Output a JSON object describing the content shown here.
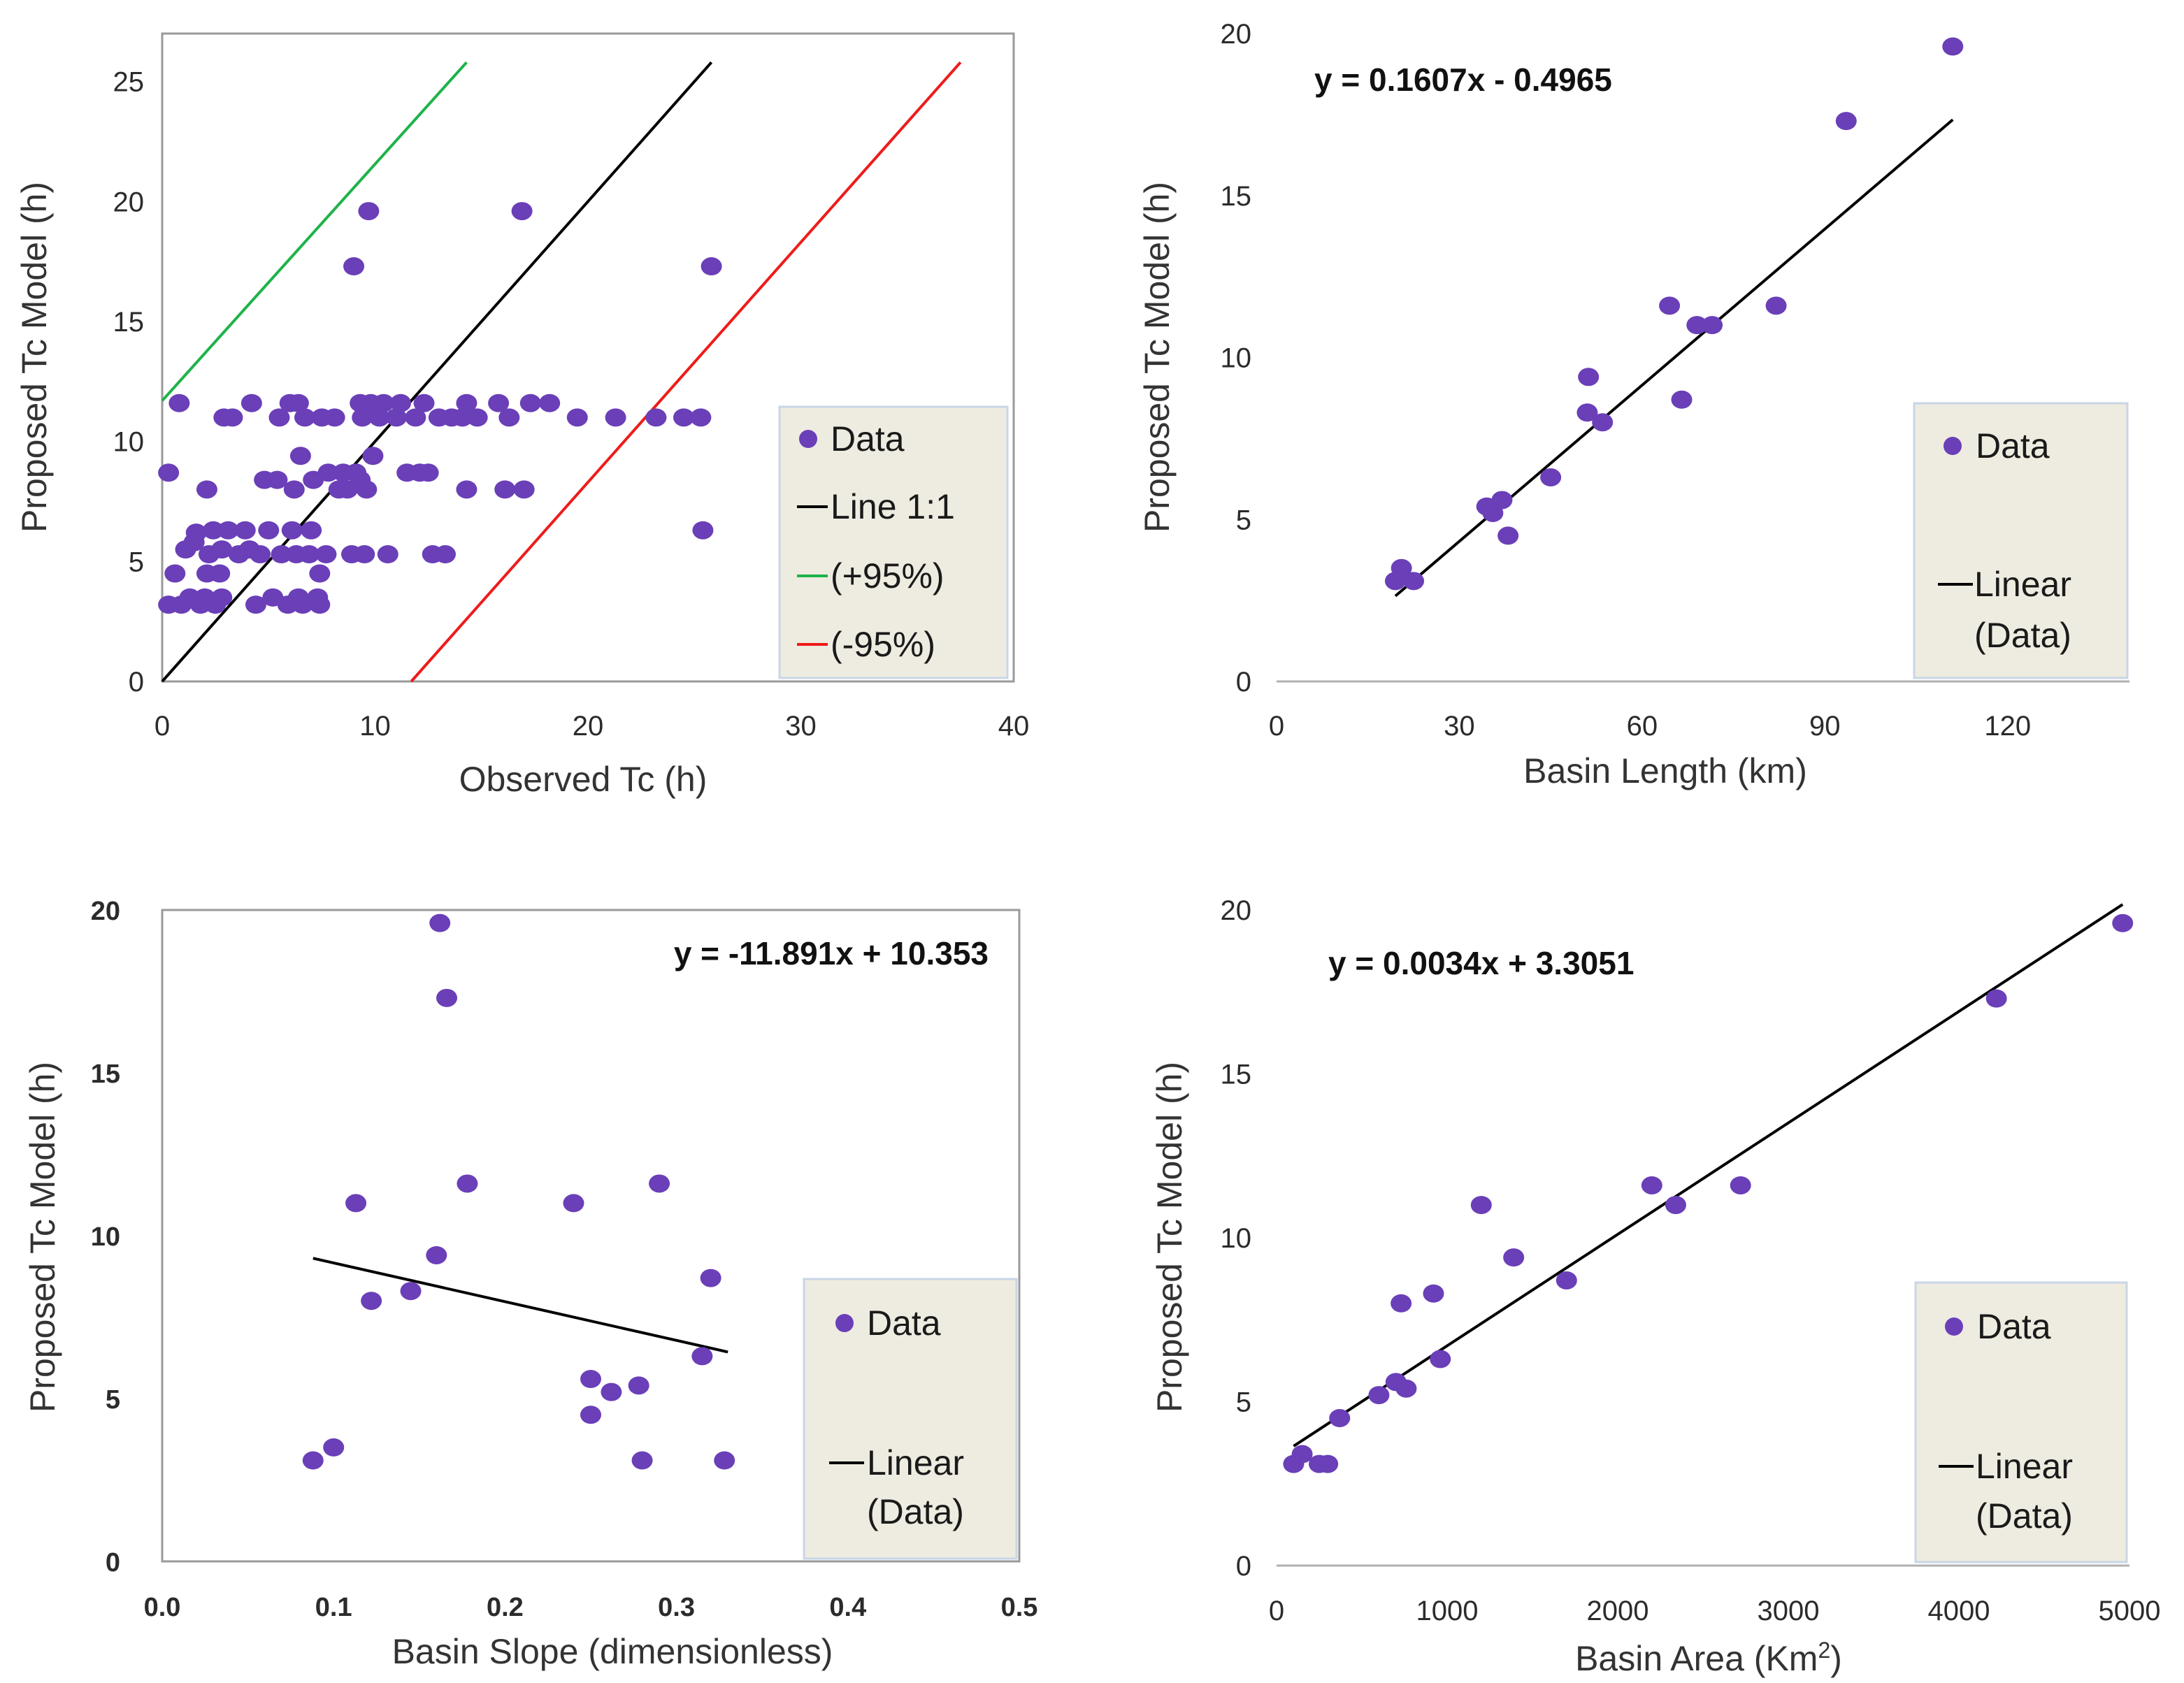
{
  "colors": {
    "point": "#6a3fb8",
    "fit": "#000000",
    "line_one_to_one": "#000000",
    "line_plus95": "#1db34a",
    "line_minus95": "#ee1b1b",
    "legend_bg": "#eeebe0"
  },
  "chart_data": [
    {
      "id": "observed",
      "type": "scatter",
      "title": "",
      "xlabel": "Observed Tc (h)",
      "ylabel": "Proposed Tc Model (h)",
      "xlim": [
        0,
        40
      ],
      "ylim": [
        0,
        27
      ],
      "xticks": [
        0,
        10,
        20,
        30,
        40
      ],
      "yticks": [
        0,
        5,
        10,
        15,
        20,
        25
      ],
      "xtick_labels": [
        "0",
        "10",
        "20",
        "30",
        "40"
      ],
      "ytick_labels": [
        "0",
        "5",
        "10",
        "15",
        "20",
        "25"
      ],
      "legend": {
        "position": "right",
        "entries": [
          "Data",
          "Line 1:1",
          "(+95%)",
          "(-95%)"
        ]
      },
      "lines": [
        {
          "name": "Line 1:1",
          "color_key": "line_one_to_one",
          "x": [
            0,
            25.8
          ],
          "y": [
            0,
            25.8
          ]
        },
        {
          "name": "(+95%)",
          "color_key": "line_plus95",
          "x": [
            0,
            14.3
          ],
          "y": [
            11.7,
            25.8
          ]
        },
        {
          "name": "(-95%)",
          "color_key": "line_minus95",
          "x": [
            11.7,
            37.5
          ],
          "y": [
            0,
            25.8
          ]
        }
      ],
      "points": [
        [
          0.3,
          8.7
        ],
        [
          0.8,
          11.6
        ],
        [
          0.3,
          3.2
        ],
        [
          0.6,
          4.5
        ],
        [
          0.9,
          3.2
        ],
        [
          1.1,
          5.5
        ],
        [
          1.3,
          3.5
        ],
        [
          1.5,
          5.8
        ],
        [
          1.6,
          6.2
        ],
        [
          1.8,
          3.2
        ],
        [
          2.0,
          3.5
        ],
        [
          2.1,
          4.5
        ],
        [
          2.1,
          8.0
        ],
        [
          2.2,
          5.3
        ],
        [
          2.4,
          6.3
        ],
        [
          2.5,
          3.2
        ],
        [
          2.7,
          4.5
        ],
        [
          2.8,
          3.5
        ],
        [
          2.8,
          5.5
        ],
        [
          2.9,
          11.0
        ],
        [
          3.1,
          6.3
        ],
        [
          3.3,
          11.0
        ],
        [
          3.6,
          5.3
        ],
        [
          3.9,
          6.3
        ],
        [
          4.1,
          5.5
        ],
        [
          4.2,
          11.6
        ],
        [
          4.4,
          3.2
        ],
        [
          4.6,
          5.3
        ],
        [
          4.8,
          8.4
        ],
        [
          5.0,
          6.3
        ],
        [
          5.2,
          3.5
        ],
        [
          5.4,
          8.4
        ],
        [
          5.5,
          11.0
        ],
        [
          5.6,
          5.3
        ],
        [
          5.9,
          3.2
        ],
        [
          6.0,
          11.6
        ],
        [
          6.1,
          6.3
        ],
        [
          6.2,
          8.0
        ],
        [
          6.3,
          5.3
        ],
        [
          6.4,
          3.5
        ],
        [
          6.4,
          11.6
        ],
        [
          6.6,
          3.2
        ],
        [
          6.5,
          9.4
        ],
        [
          6.7,
          11.0
        ],
        [
          6.9,
          5.3
        ],
        [
          7.0,
          6.3
        ],
        [
          7.1,
          8.4
        ],
        [
          7.3,
          3.5
        ],
        [
          7.4,
          4.5
        ],
        [
          7.4,
          3.2
        ],
        [
          7.5,
          11.0
        ],
        [
          7.7,
          5.3
        ],
        [
          7.8,
          8.7
        ],
        [
          8.1,
          11.0
        ],
        [
          8.3,
          8.0
        ],
        [
          8.5,
          8.7
        ],
        [
          8.7,
          8.0
        ],
        [
          8.9,
          5.3
        ],
        [
          9.0,
          17.3
        ],
        [
          9.1,
          8.7
        ],
        [
          9.3,
          8.4
        ],
        [
          9.3,
          11.6
        ],
        [
          9.4,
          11.0
        ],
        [
          9.5,
          5.3
        ],
        [
          9.6,
          8.0
        ],
        [
          9.7,
          19.6
        ],
        [
          9.8,
          11.6
        ],
        [
          9.9,
          9.4
        ],
        [
          10.2,
          11.0
        ],
        [
          10.4,
          11.6
        ],
        [
          10.6,
          5.3
        ],
        [
          11.0,
          11.0
        ],
        [
          11.2,
          11.6
        ],
        [
          11.5,
          8.7
        ],
        [
          11.9,
          11.0
        ],
        [
          12.1,
          8.7
        ],
        [
          12.3,
          11.6
        ],
        [
          12.5,
          8.7
        ],
        [
          12.7,
          5.3
        ],
        [
          13.0,
          11.0
        ],
        [
          13.3,
          5.3
        ],
        [
          13.6,
          11.0
        ],
        [
          14.1,
          11.0
        ],
        [
          14.3,
          11.6
        ],
        [
          14.3,
          8.0
        ],
        [
          14.8,
          11.0
        ],
        [
          15.8,
          11.6
        ],
        [
          16.1,
          8.0
        ],
        [
          16.3,
          11.0
        ],
        [
          16.9,
          19.6
        ],
        [
          17.0,
          8.0
        ],
        [
          17.3,
          11.6
        ],
        [
          18.2,
          11.6
        ],
        [
          19.5,
          11.0
        ],
        [
          21.3,
          11.0
        ],
        [
          23.2,
          11.0
        ],
        [
          24.5,
          11.0
        ],
        [
          25.3,
          11.0
        ],
        [
          25.4,
          6.3
        ],
        [
          25.8,
          17.3
        ]
      ]
    },
    {
      "id": "length",
      "type": "scatter",
      "title": "",
      "xlabel": "Basin Length (km)",
      "ylabel": "Proposed Tc Model (h)",
      "xlim": [
        0,
        140
      ],
      "ylim": [
        0,
        20
      ],
      "xticks": [
        0,
        30,
        60,
        90,
        120
      ],
      "yticks": [
        0,
        5,
        10,
        15,
        20
      ],
      "xtick_labels": [
        "0",
        "30",
        "60",
        "90",
        "120"
      ],
      "ytick_labels": [
        "0",
        "5",
        "10",
        "15",
        "20"
      ],
      "equation": "y = 0.1607x - 0.4965",
      "fit": {
        "slope": 0.1607,
        "intercept": -0.4965,
        "x_range": [
          19.5,
          111
        ]
      },
      "legend": {
        "position": "right",
        "entries": [
          "Data",
          "Linear",
          "(Data)"
        ]
      },
      "points": [
        [
          19.5,
          3.1
        ],
        [
          20.5,
          3.5
        ],
        [
          22.5,
          3.1
        ],
        [
          34.5,
          5.4
        ],
        [
          35.5,
          5.2
        ],
        [
          37.0,
          5.6
        ],
        [
          38.0,
          4.5
        ],
        [
          45.0,
          6.3
        ],
        [
          51.0,
          8.3
        ],
        [
          51.2,
          9.4
        ],
        [
          53.5,
          8.0
        ],
        [
          64.5,
          11.6
        ],
        [
          66.5,
          8.7
        ],
        [
          69.0,
          11.0
        ],
        [
          71.5,
          11.0
        ],
        [
          82.0,
          11.6
        ],
        [
          93.5,
          17.3
        ],
        [
          111.0,
          19.6
        ]
      ]
    },
    {
      "id": "slope",
      "type": "scatter",
      "title": "",
      "xlabel": "Basin Slope (dimensionless)",
      "ylabel": "Proposed Tc Model (h)",
      "xlim": [
        0,
        0.5
      ],
      "ylim": [
        0,
        20
      ],
      "xticks": [
        0,
        0.1,
        0.2,
        0.3,
        0.4,
        0.5
      ],
      "yticks": [
        0,
        5,
        10,
        15,
        20
      ],
      "xtick_labels": [
        "0.0",
        "0.1",
        "0.2",
        "0.3",
        "0.4",
        "0.5"
      ],
      "ytick_labels": [
        "0",
        "5",
        "10",
        "15",
        "20"
      ],
      "equation": "y = -11.891x + 10.353",
      "fit": {
        "slope": -11.891,
        "intercept": 10.353,
        "x_range": [
          0.088,
          0.33
        ]
      },
      "legend": {
        "position": "right",
        "entries": [
          "Data",
          "Linear",
          "(Data)"
        ]
      },
      "points": [
        [
          0.088,
          3.1
        ],
        [
          0.1,
          3.5
        ],
        [
          0.113,
          11.0
        ],
        [
          0.122,
          8.0
        ],
        [
          0.145,
          8.3
        ],
        [
          0.16,
          9.4
        ],
        [
          0.162,
          19.6
        ],
        [
          0.166,
          17.3
        ],
        [
          0.178,
          11.6
        ],
        [
          0.24,
          11.0
        ],
        [
          0.25,
          5.6
        ],
        [
          0.25,
          4.5
        ],
        [
          0.262,
          5.2
        ],
        [
          0.278,
          5.4
        ],
        [
          0.28,
          3.1
        ],
        [
          0.29,
          11.6
        ],
        [
          0.315,
          6.3
        ],
        [
          0.32,
          8.7
        ],
        [
          0.328,
          3.1
        ]
      ]
    },
    {
      "id": "area",
      "type": "scatter",
      "title": "",
      "xlabel": "Basin Area (Km",
      "xlabel_sup": "2",
      "xlabel_suffix": ")",
      "ylabel": "Proposed Tc Model (h)",
      "xlim": [
        0,
        5000
      ],
      "ylim": [
        0,
        20
      ],
      "xticks": [
        0,
        1000,
        2000,
        3000,
        4000,
        5000
      ],
      "yticks": [
        0,
        5,
        10,
        15,
        20
      ],
      "xtick_labels": [
        "0",
        "1000",
        "2000",
        "3000",
        "4000",
        "5000"
      ],
      "ytick_labels": [
        "0",
        "5",
        "10",
        "15",
        "20"
      ],
      "equation": "y = 0.0034x + 3.3051",
      "fit": {
        "slope": 0.0034,
        "intercept": 3.3051,
        "x_range": [
          100,
          4960
        ]
      },
      "legend": {
        "position": "right",
        "entries": [
          "Data",
          "Linear",
          "(Data)"
        ]
      },
      "points": [
        [
          100,
          3.1
        ],
        [
          150,
          3.4
        ],
        [
          250,
          3.1
        ],
        [
          300,
          3.1
        ],
        [
          370,
          4.5
        ],
        [
          600,
          5.2
        ],
        [
          700,
          5.6
        ],
        [
          730,
          8.0
        ],
        [
          760,
          5.4
        ],
        [
          920,
          8.3
        ],
        [
          960,
          6.3
        ],
        [
          1200,
          11.0
        ],
        [
          1390,
          9.4
        ],
        [
          1700,
          8.7
        ],
        [
          2200,
          11.6
        ],
        [
          2340,
          11.0
        ],
        [
          2720,
          11.6
        ],
        [
          4220,
          17.3
        ],
        [
          4960,
          19.6
        ]
      ]
    }
  ]
}
